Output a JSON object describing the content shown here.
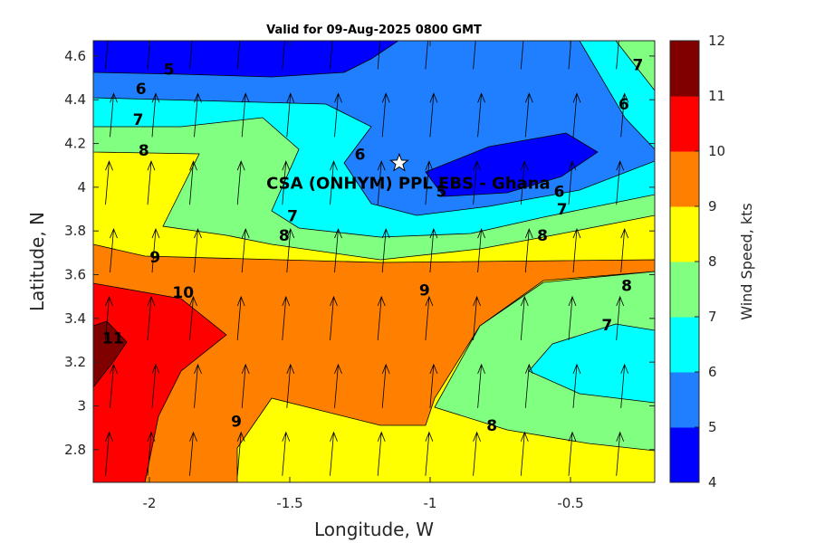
{
  "chart_data": {
    "type": "contour",
    "title": "Valid for 09-Aug-2025 0800 GMT",
    "xlabel": "Longitude, W",
    "ylabel": "Latitude, N",
    "xlim": [
      -2.2,
      -0.2
    ],
    "ylim": [
      2.65,
      4.67
    ],
    "x_ticks": [
      -2,
      -1.5,
      -1,
      -0.5
    ],
    "x_tick_labels": [
      "-2",
      "-1.5",
      "-1",
      "-0.5"
    ],
    "y_ticks": [
      2.8,
      3,
      3.2,
      3.4,
      3.6,
      3.8,
      4,
      4.2,
      4.4,
      4.6
    ],
    "y_tick_labels": [
      "2.8",
      "3",
      "3.2",
      "3.4",
      "3.6",
      "3.8",
      "4",
      "4.2",
      "4.4",
      "4.6"
    ],
    "colorbar": {
      "label": "Wind Speed, kts",
      "min": 4,
      "max": 12,
      "ticks": [
        4,
        5,
        6,
        7,
        8,
        9,
        10,
        11,
        12
      ],
      "tick_labels": [
        "4",
        "5",
        "6",
        "7",
        "8",
        "9",
        "10",
        "11",
        "12"
      ],
      "colors": [
        "#0000ff",
        "#1f7fff",
        "#00ffff",
        "#80ff80",
        "#ffff00",
        "#ff8000",
        "#ff0000",
        "#800000"
      ]
    },
    "site": {
      "label": "CSA (ONHYM) PPL EBS  - Ghana",
      "lon": -1.11,
      "lat": 4.11
    },
    "contour_labels": [
      {
        "text": "5",
        "lon": -1.93,
        "lat": 4.54
      },
      {
        "text": "6",
        "lon": -2.03,
        "lat": 4.45
      },
      {
        "text": "7",
        "lon": -2.04,
        "lat": 4.31
      },
      {
        "text": "8",
        "lon": -2.02,
        "lat": 4.17
      },
      {
        "text": "6",
        "lon": -1.25,
        "lat": 4.15
      },
      {
        "text": "7",
        "lon": -1.49,
        "lat": 3.87
      },
      {
        "text": "8",
        "lon": -1.52,
        "lat": 3.78
      },
      {
        "text": "9",
        "lon": -1.98,
        "lat": 3.68
      },
      {
        "text": "10",
        "lon": -1.88,
        "lat": 3.52
      },
      {
        "text": "11",
        "lon": -2.13,
        "lat": 3.31
      },
      {
        "text": "9",
        "lon": -1.02,
        "lat": 3.53
      },
      {
        "text": "5",
        "lon": -0.96,
        "lat": 3.98
      },
      {
        "text": "6",
        "lon": -0.54,
        "lat": 3.98
      },
      {
        "text": "7",
        "lon": -0.53,
        "lat": 3.9
      },
      {
        "text": "8",
        "lon": -0.6,
        "lat": 3.78
      },
      {
        "text": "8",
        "lon": -0.3,
        "lat": 3.55
      },
      {
        "text": "7",
        "lon": -0.37,
        "lat": 3.37
      },
      {
        "text": "9",
        "lon": -1.69,
        "lat": 2.93
      },
      {
        "text": "8",
        "lon": -0.78,
        "lat": 2.91
      },
      {
        "text": "7",
        "lon": -0.26,
        "lat": 4.56
      },
      {
        "text": "6",
        "lon": -0.31,
        "lat": 4.38
      }
    ],
    "arrows": {
      "lons": [
        -2.15,
        -2.0,
        -1.85,
        -1.68,
        -1.52,
        -1.35,
        -1.18,
        -1.01,
        -0.84,
        -0.67,
        -0.5,
        -0.33
      ],
      "lats": [
        2.68,
        2.99,
        3.3,
        3.61,
        3.92,
        4.23,
        4.54
      ],
      "direction": "north"
    }
  }
}
